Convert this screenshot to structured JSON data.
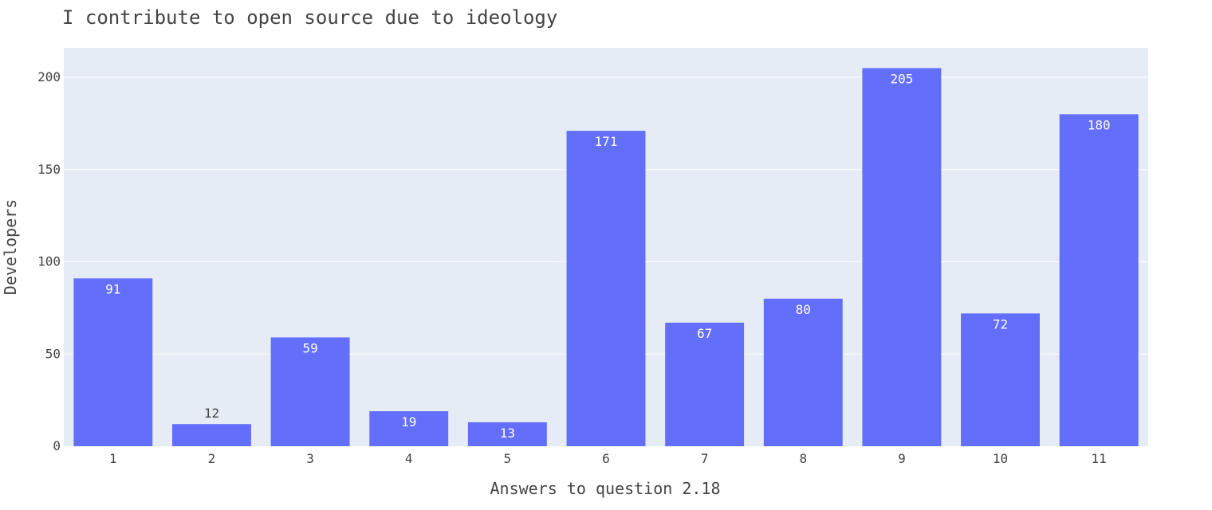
{
  "chart_data": {
    "type": "bar",
    "title": "I contribute to open source due to ideology",
    "xlabel": "Answers to question 2.18",
    "ylabel": "Developers",
    "categories": [
      "1",
      "2",
      "3",
      "4",
      "5",
      "6",
      "7",
      "8",
      "9",
      "10",
      "11"
    ],
    "values": [
      91,
      12,
      59,
      19,
      13,
      171,
      67,
      80,
      205,
      72,
      180
    ],
    "ylim": [
      0,
      216
    ],
    "yticks": [
      0,
      50,
      100,
      150,
      200
    ],
    "grid": true,
    "legend": "none",
    "colors": {
      "bar": "#636efa",
      "plot_background": "#e5ecf6",
      "gridline": "#ffffff",
      "label_inside": "#ffffff",
      "label_outside": "#444444"
    }
  }
}
